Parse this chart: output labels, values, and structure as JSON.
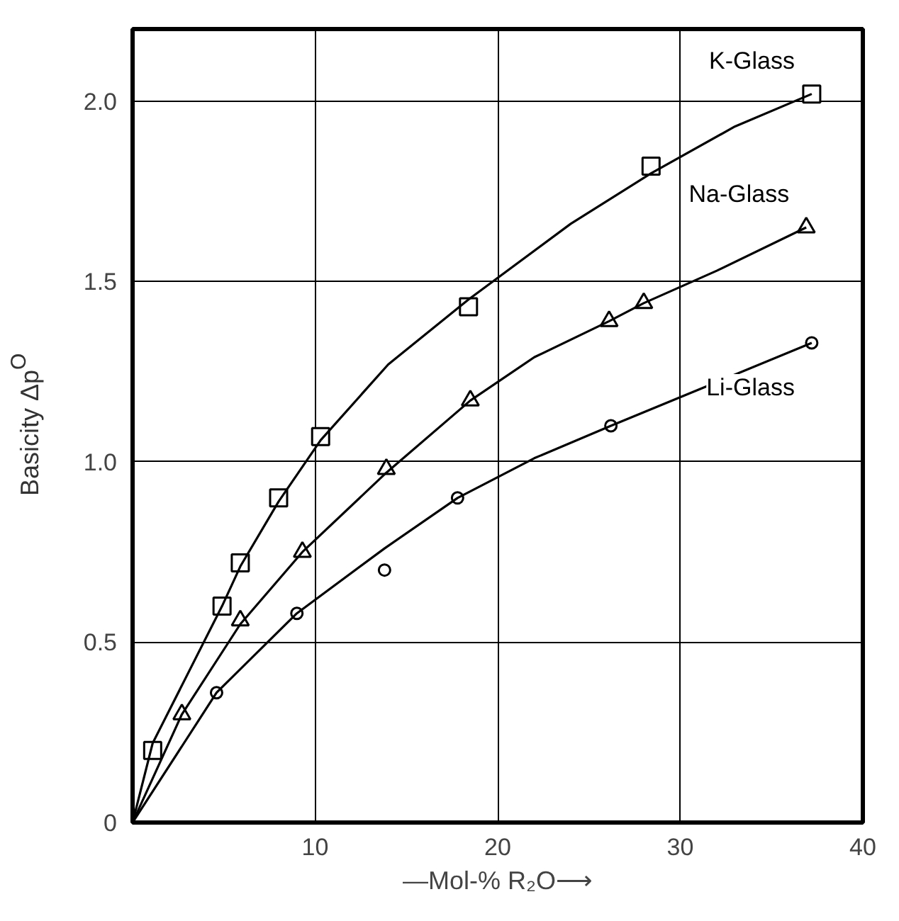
{
  "chart_data": {
    "type": "scatter",
    "xlabel": "—Mol-% R₂O⟶",
    "ylabel": "Basicity Δp$^{O}$",
    "xlim": [
      0,
      40
    ],
    "ylim": [
      0,
      2.2
    ],
    "xticks": [
      {
        "value": 0,
        "label": null
      },
      10,
      20,
      30,
      40
    ],
    "yticks": [
      0,
      0.5,
      {
        "value": 1.0,
        "label": "1.0"
      },
      1.5,
      {
        "value": 2.0,
        "label": "2.0"
      }
    ],
    "grid": true,
    "legend": false,
    "series": [
      {
        "name": "K-Glass",
        "color": "#000000",
        "marker": "square",
        "x": [
          1.1,
          4.9,
          5.9,
          8.0,
          10.3,
          18.4,
          28.4,
          37.2
        ],
        "values": [
          0.2,
          0.6,
          0.72,
          0.9,
          1.07,
          1.43,
          1.82,
          2.02
        ]
      },
      {
        "name": "Na-Glass",
        "color": "#000000",
        "marker": "triangle",
        "x": [
          2.7,
          5.9,
          9.3,
          13.9,
          18.5,
          26.1,
          28.0,
          36.9
        ],
        "values": [
          0.3,
          0.56,
          0.75,
          0.98,
          1.17,
          1.39,
          1.44,
          1.65
        ]
      },
      {
        "name": "Li-Glass",
        "color": "#000000",
        "marker": "circle",
        "x": [
          4.6,
          9.0,
          13.8,
          17.8,
          26.2,
          37.2
        ],
        "values": [
          0.36,
          0.58,
          0.7,
          0.9,
          1.1,
          1.33
        ]
      },
      {
        "type": "line",
        "color": "#000000",
        "marker": "none",
        "x": [
          0,
          1.1,
          4.9,
          5.9,
          8.0,
          10.3,
          14,
          18.4,
          24,
          28.4,
          33,
          37.2
        ],
        "values": [
          0,
          0.22,
          0.6,
          0.71,
          0.89,
          1.06,
          1.27,
          1.45,
          1.66,
          1.8,
          1.93,
          2.02
        ]
      },
      {
        "type": "line",
        "color": "#000000",
        "marker": "none",
        "x": [
          0,
          2.7,
          5.9,
          9.3,
          13.9,
          18.5,
          22,
          26.1,
          28.0,
          32,
          36.9
        ],
        "values": [
          0,
          0.3,
          0.55,
          0.75,
          0.97,
          1.17,
          1.29,
          1.39,
          1.44,
          1.53,
          1.65
        ]
      },
      {
        "type": "line",
        "color": "#000000",
        "marker": "none",
        "x": [
          0,
          4.6,
          9.0,
          13.8,
          17.8,
          22,
          26.2,
          31,
          37.2
        ],
        "values": [
          0,
          0.36,
          0.58,
          0.76,
          0.9,
          1.01,
          1.1,
          1.2,
          1.33
        ]
      }
    ]
  }
}
